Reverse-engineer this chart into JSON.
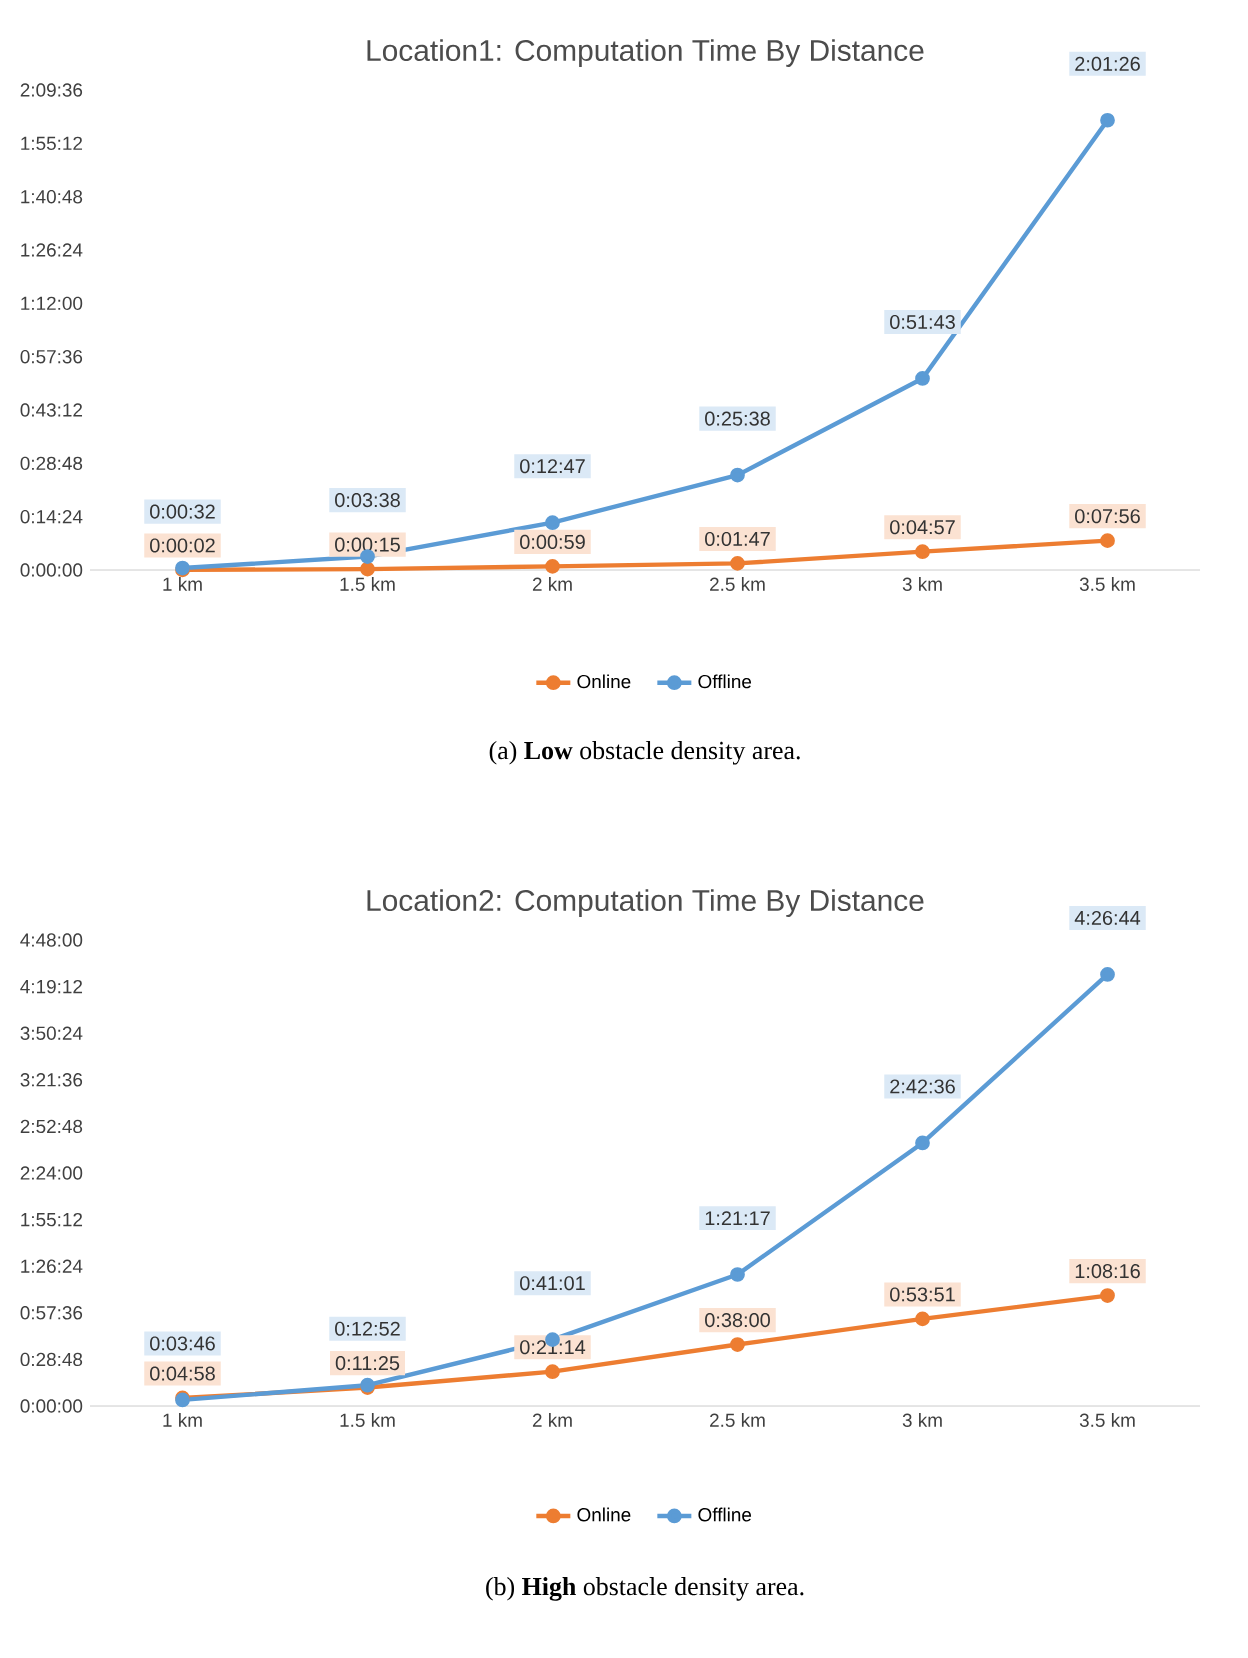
{
  "chart_data": [
    {
      "type": "line",
      "title": "Location1: Computation Time By Distance",
      "categories": [
        "1 km",
        "1.5 km",
        "2 km",
        "2.5 km",
        "3 km",
        "3.5 km"
      ],
      "series": [
        {
          "name": "Online",
          "color": "#ed7d31",
          "values": [
            2,
            15,
            59,
            107,
            297,
            476
          ],
          "value_labels": [
            "0:00:02",
            "0:00:15",
            "0:00:59",
            "0:01:47",
            "0:04:57",
            "0:07:56"
          ]
        },
        {
          "name": "Offline",
          "color": "#5b9bd5",
          "values": [
            32,
            218,
            767,
            1538,
            3103,
            7286
          ],
          "value_labels": [
            "0:00:32",
            "0:03:38",
            "0:12:47",
            "0:25:38",
            "0:51:43",
            "2:01:26"
          ]
        }
      ],
      "ylim": [
        0,
        7776
      ],
      "yticks": [
        {
          "value": 0,
          "label": "0:00:00"
        },
        {
          "value": 864,
          "label": "0:14:24"
        },
        {
          "value": 1728,
          "label": "0:28:48"
        },
        {
          "value": 2592,
          "label": "0:43:12"
        },
        {
          "value": 3456,
          "label": "0:57:36"
        },
        {
          "value": 4320,
          "label": "1:12:00"
        },
        {
          "value": 5184,
          "label": "1:26:24"
        },
        {
          "value": 6048,
          "label": "1:40:48"
        },
        {
          "value": 6912,
          "label": "1:55:12"
        },
        {
          "value": 7776,
          "label": "2:09:36"
        }
      ],
      "legend": "bottom",
      "marker": "circle",
      "line_style": "solid",
      "annotations": [
        "(a) **Low** obstacle density area."
      ]
    },
    {
      "type": "line",
      "title": "Location2: Computation Time By Distance",
      "categories": [
        "1 km",
        "1.5 km",
        "2 km",
        "2.5 km",
        "3 km",
        "3.5 km"
      ],
      "series": [
        {
          "name": "Online",
          "color": "#ed7d31",
          "values": [
            298,
            685,
            1274,
            2280,
            3231,
            4096
          ],
          "value_labels": [
            "0:04:58",
            "0:11:25",
            "0:21:14",
            "0:38:00",
            "0:53:51",
            "1:08:16"
          ]
        },
        {
          "name": "Offline",
          "color": "#5b9bd5",
          "values": [
            226,
            772,
            2461,
            4877,
            9756,
            16004
          ],
          "value_labels": [
            "0:03:46",
            "0:12:52",
            "0:41:01",
            "1:21:17",
            "2:42:36",
            "4:26:44"
          ]
        }
      ],
      "ylim": [
        0,
        17280
      ],
      "yticks": [
        {
          "value": 0,
          "label": "0:00:00"
        },
        {
          "value": 1728,
          "label": "0:28:48"
        },
        {
          "value": 3456,
          "label": "0:57:36"
        },
        {
          "value": 5184,
          "label": "1:26:24"
        },
        {
          "value": 6912,
          "label": "1:55:12"
        },
        {
          "value": 8640,
          "label": "2:24:00"
        },
        {
          "value": 10368,
          "label": "2:52:48"
        },
        {
          "value": 12096,
          "label": "3:21:36"
        },
        {
          "value": 13824,
          "label": "3:50:24"
        },
        {
          "value": 15552,
          "label": "4:19:12"
        },
        {
          "value": 17280,
          "label": "4:48:00"
        }
      ],
      "legend": "bottom",
      "marker": "circle",
      "line_style": "solid",
      "annotations": [
        "(b) **High** obstacle density area."
      ]
    }
  ]
}
